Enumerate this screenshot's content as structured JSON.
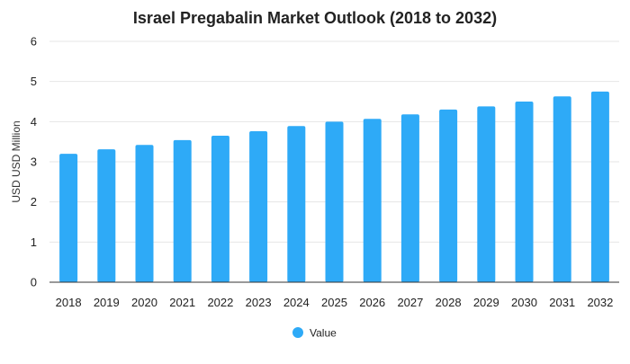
{
  "chart_data": {
    "type": "bar",
    "title": "Israel Pregabalin Market Outlook (2018 to 2032)",
    "xlabel": "",
    "ylabel": "USD USD Million",
    "categories": [
      "2018",
      "2019",
      "2020",
      "2021",
      "2022",
      "2023",
      "2024",
      "2025",
      "2026",
      "2027",
      "2028",
      "2029",
      "2030",
      "2031",
      "2032"
    ],
    "series": [
      {
        "name": "Value",
        "values": [
          3.2,
          3.31,
          3.42,
          3.54,
          3.65,
          3.76,
          3.89,
          4.0,
          4.07,
          4.18,
          4.3,
          4.38,
          4.5,
          4.63,
          4.75
        ]
      }
    ],
    "ylim": [
      0,
      6
    ],
    "yticks": [
      "0",
      "1",
      "2",
      "3",
      "4",
      "5",
      "6"
    ],
    "grid": true,
    "legend": "bottom-center",
    "colors": {
      "bar": "#2eaaf7",
      "grid": "#e6e6e6",
      "axis": "#333333",
      "text": "#222222"
    }
  }
}
